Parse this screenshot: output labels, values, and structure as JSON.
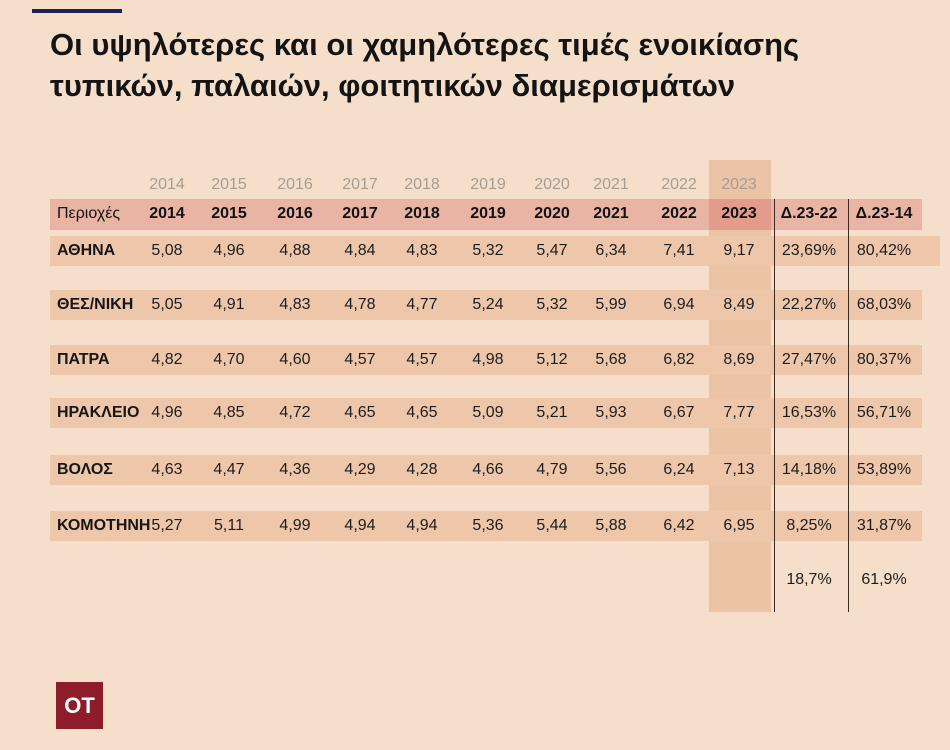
{
  "title_line1": "Οι υψηλότερες και οι χαμηλότερες τιμές ενοικίασης",
  "title_line2": "τυπικών, παλαιών, φοιτητικών διαμερισμάτων",
  "logo": "ΟΤ",
  "chart_data": {
    "type": "table",
    "title": "Οι υψηλότερες και οι χαμηλότερες τιμές ενοικίασης τυπικών, παλαιών, φοιτητικών διαμερισμάτων",
    "region_header": "Περιοχές",
    "years": [
      "2014",
      "2015",
      "2016",
      "2017",
      "2018",
      "2019",
      "2020",
      "2021",
      "2022",
      "2023"
    ],
    "change_headers": [
      "Δ.23-22",
      "Δ.23-14"
    ],
    "highlight_column": "2023",
    "rows": [
      {
        "region": "ΑΘΗΝΑ",
        "values": [
          "5,08",
          "4,96",
          "4,88",
          "4,84",
          "4,83",
          "5,32",
          "5,47",
          "6,34",
          "7,41",
          "9,17"
        ],
        "changes": [
          "23,69%",
          "80,42%"
        ]
      },
      {
        "region": "ΘΕΣ/ΝΙΚΗ",
        "values": [
          "5,05",
          "4,91",
          "4,83",
          "4,78",
          "4,77",
          "5,24",
          "5,32",
          "5,99",
          "6,94",
          "8,49"
        ],
        "changes": [
          "22,27%",
          "68,03%"
        ]
      },
      {
        "region": "ΠΑΤΡΑ",
        "values": [
          "4,82",
          "4,70",
          "4,60",
          "4,57",
          "4,57",
          "4,98",
          "5,12",
          "5,68",
          "6,82",
          "8,69"
        ],
        "changes": [
          "27,47%",
          "80,37%"
        ]
      },
      {
        "region": "ΗΡΑΚΛΕΙΟ",
        "values": [
          "4,96",
          "4,85",
          "4,72",
          "4,65",
          "4,65",
          "5,09",
          "5,21",
          "5,93",
          "6,67",
          "7,77"
        ],
        "changes": [
          "16,53%",
          "56,71%"
        ]
      },
      {
        "region": "ΒΟΛΟΣ",
        "values": [
          "4,63",
          "4,47",
          "4,36",
          "4,29",
          "4,28",
          "4,66",
          "4,79",
          "5,56",
          "6,24",
          "7,13"
        ],
        "changes": [
          "14,18%",
          "53,89%"
        ]
      },
      {
        "region": "ΚΟΜΟΤΗΝΗ",
        "values": [
          "5,27",
          "5,11",
          "4,99",
          "4,94",
          "4,94",
          "5,36",
          "5,44",
          "5,88",
          "6,42",
          "6,95"
        ],
        "changes": [
          "8,25%",
          "31,87%"
        ]
      }
    ],
    "summary": [
      "18,7%",
      "61,9%"
    ]
  }
}
